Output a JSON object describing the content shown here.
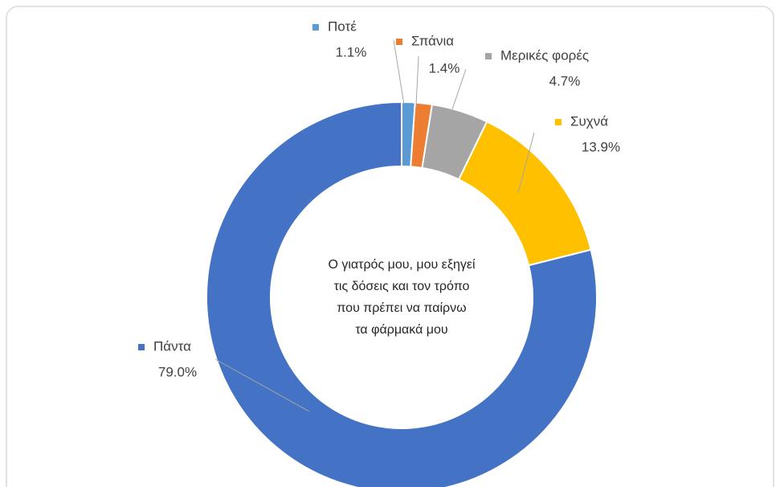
{
  "chart_data": {
    "type": "donut",
    "center_text": [
      "Ο γιατρός μου, μου εξηγεί",
      "τις δόσεις και τον τρόπο",
      "που πρέπει να παίρνω",
      "τα φάρμακά μου"
    ],
    "categories": [
      "Ποτέ",
      "Σπάνια",
      "Μερικές  φορές",
      "Συχνά",
      "Πάντα"
    ],
    "values": [
      1.1,
      1.4,
      4.7,
      13.9,
      79.0
    ],
    "value_labels": [
      "1.1%",
      "1.4%",
      "4.7%",
      "13.9%",
      "79.0%"
    ],
    "colors": [
      "#5b9bd5",
      "#ed7d31",
      "#a5a5a5",
      "#ffc000",
      "#4472c4"
    ]
  }
}
